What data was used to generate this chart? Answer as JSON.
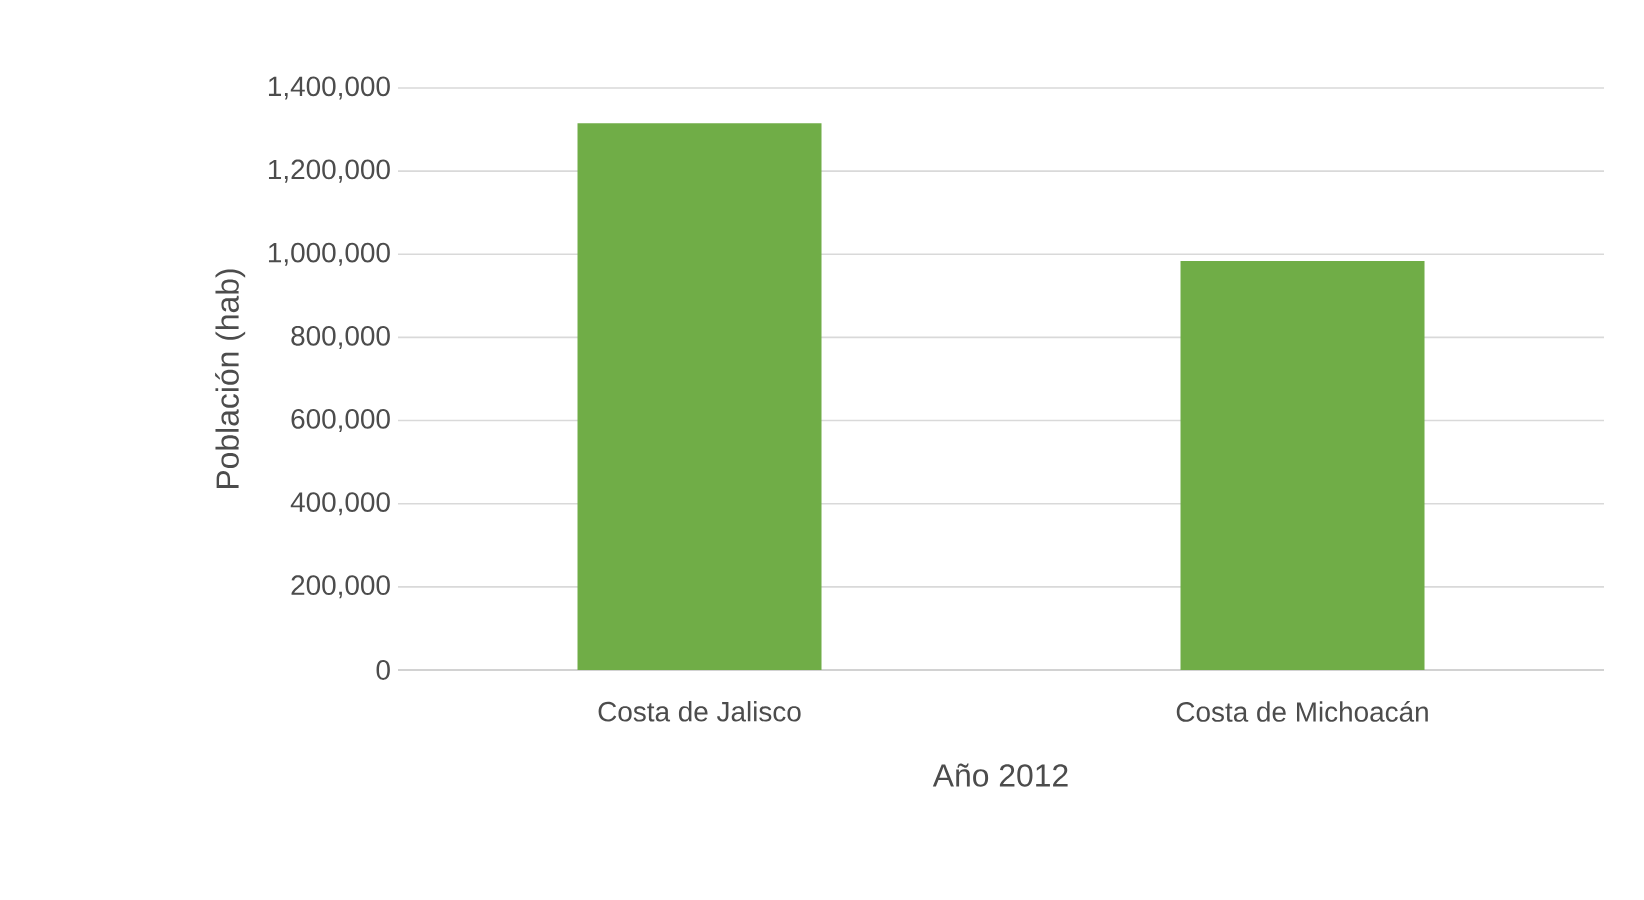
{
  "chart_data": {
    "type": "bar",
    "xlabel": "Año 2012",
    "ylabel": "Población (hab)",
    "categories": [
      "Costa de Jalisco",
      "Costa de Michoacán"
    ],
    "values": [
      1315000,
      984000
    ],
    "color": "#70ad47",
    "ylim": [
      0,
      1400000
    ],
    "yticks": [
      {
        "value": 0,
        "label": "0"
      },
      {
        "value": 200000,
        "label": "200,000"
      },
      {
        "value": 400000,
        "label": "400,000"
      },
      {
        "value": 600000,
        "label": "600,000"
      },
      {
        "value": 800000,
        "label": "800,000"
      },
      {
        "value": 1000000,
        "label": "1,000,000"
      },
      {
        "value": 1200000,
        "label": "1,200,000"
      },
      {
        "value": 1400000,
        "label": "1,400,000"
      }
    ],
    "grid": "y"
  }
}
